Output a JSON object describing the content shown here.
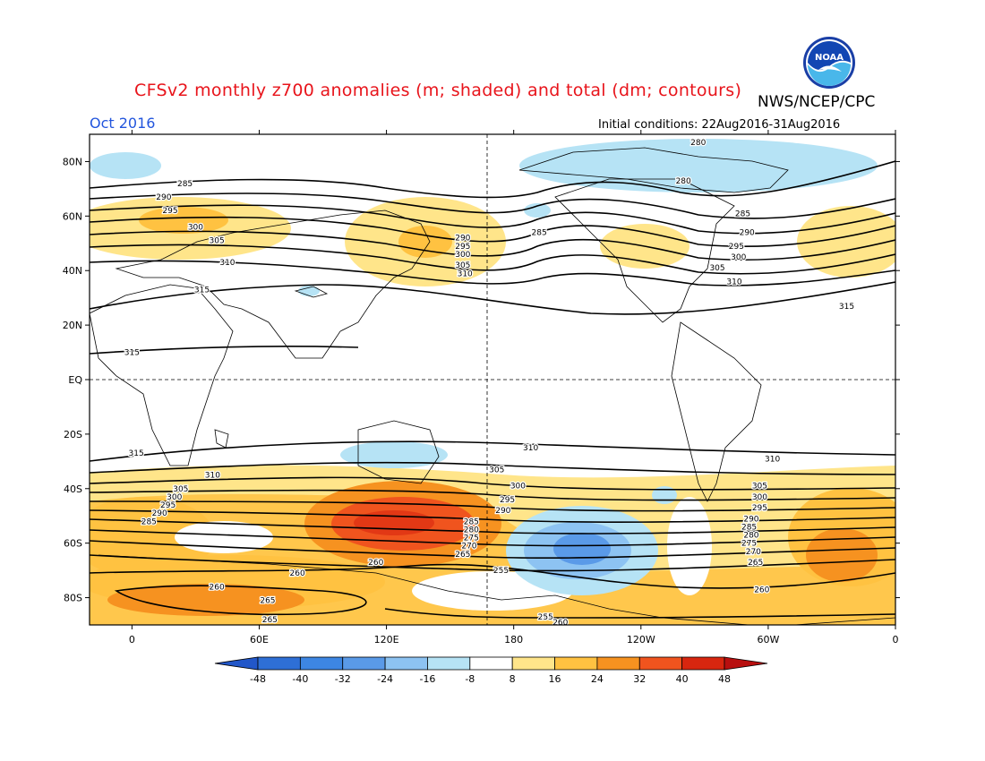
{
  "header": {
    "title": "CFSv2 monthly z700 anomalies (m; shaded) and total (dm; contours)",
    "title_color": "#e8141b",
    "agency": "NWS/NCEP/CPC",
    "month": "Oct 2016",
    "month_color": "#2255dd",
    "initial_conditions": "Initial conditions: 22Aug2016-31Aug2016",
    "logo_text": "NOAA",
    "logo_icon": "noaa-logo"
  },
  "map": {
    "projection": "cylindrical-equidistant",
    "lon_range": [
      -20,
      360
    ],
    "lat_range": [
      -90,
      90
    ],
    "lat_labels": [
      {
        "lat": 80,
        "text": "80N"
      },
      {
        "lat": 60,
        "text": "60N"
      },
      {
        "lat": 40,
        "text": "40N"
      },
      {
        "lat": 20,
        "text": "20N"
      },
      {
        "lat": 0,
        "text": "EQ"
      },
      {
        "lat": -20,
        "text": "20S"
      },
      {
        "lat": -40,
        "text": "40S"
      },
      {
        "lat": -60,
        "text": "60S"
      },
      {
        "lat": -80,
        "text": "80S"
      }
    ],
    "lon_labels": [
      {
        "lon": 0,
        "text": "0"
      },
      {
        "lon": 60,
        "text": "60E"
      },
      {
        "lon": 120,
        "text": "120E"
      },
      {
        "lon": 180,
        "text": "180"
      },
      {
        "lon": 240,
        "text": "120W"
      },
      {
        "lon": 300,
        "text": "60W"
      },
      {
        "lon": 360,
        "text": "0"
      }
    ],
    "reference_lines": {
      "equator": true,
      "dateline": true
    }
  },
  "colorbar": {
    "ticks": [
      "-48",
      "-40",
      "-32",
      "-24",
      "-16",
      "-8",
      "8",
      "16",
      "24",
      "32",
      "40",
      "48"
    ],
    "colors": [
      "#2e6fd6",
      "#3d86e3",
      "#5a9ae8",
      "#8dc3f2",
      "#b6e3f5",
      "#ffffff",
      "#ffe58a",
      "#ffc241",
      "#f69220",
      "#f0541e",
      "#d8260f"
    ],
    "below_color": "#2257c9",
    "above_color": "#b80f0f"
  },
  "contour_labels": [
    {
      "text": "285",
      "lon": 25,
      "lat": 72
    },
    {
      "text": "290",
      "lon": 15,
      "lat": 67
    },
    {
      "text": "295",
      "lon": 18,
      "lat": 62
    },
    {
      "text": "300",
      "lon": 30,
      "lat": 56
    },
    {
      "text": "305",
      "lon": 40,
      "lat": 51
    },
    {
      "text": "310",
      "lon": 45,
      "lat": 43
    },
    {
      "text": "315",
      "lon": 33,
      "lat": 33
    },
    {
      "text": "315",
      "lon": 0,
      "lat": 10
    },
    {
      "text": "290",
      "lon": 156,
      "lat": 52
    },
    {
      "text": "295",
      "lon": 156,
      "lat": 49
    },
    {
      "text": "300",
      "lon": 156,
      "lat": 46
    },
    {
      "text": "305",
      "lon": 156,
      "lat": 42
    },
    {
      "text": "310",
      "lon": 157,
      "lat": 39
    },
    {
      "text": "285",
      "lon": 192,
      "lat": 54
    },
    {
      "text": "280",
      "lon": 260,
      "lat": 73
    },
    {
      "text": "285",
      "lon": 288,
      "lat": 61
    },
    {
      "text": "290",
      "lon": 290,
      "lat": 54
    },
    {
      "text": "295",
      "lon": 285,
      "lat": 49
    },
    {
      "text": "300",
      "lon": 286,
      "lat": 45
    },
    {
      "text": "305",
      "lon": 276,
      "lat": 41
    },
    {
      "text": "310",
      "lon": 284,
      "lat": 36
    },
    {
      "text": "315",
      "lon": 337,
      "lat": 27
    },
    {
      "text": "280",
      "lon": 267,
      "lat": 87
    },
    {
      "text": "310",
      "lon": 188,
      "lat": -25
    },
    {
      "text": "310",
      "lon": 302,
      "lat": -29
    },
    {
      "text": "305",
      "lon": 172,
      "lat": -33
    },
    {
      "text": "300",
      "lon": 182,
      "lat": -39
    },
    {
      "text": "295",
      "lon": 177,
      "lat": -44
    },
    {
      "text": "290",
      "lon": 175,
      "lat": -48
    },
    {
      "text": "285",
      "lon": 160,
      "lat": -52
    },
    {
      "text": "280",
      "lon": 160,
      "lat": -55
    },
    {
      "text": "275",
      "lon": 160,
      "lat": -58
    },
    {
      "text": "270",
      "lon": 159,
      "lat": -61
    },
    {
      "text": "265",
      "lon": 156,
      "lat": -64
    },
    {
      "text": "260",
      "lon": 115,
      "lat": -67
    },
    {
      "text": "260",
      "lon": 78,
      "lat": -71
    },
    {
      "text": "255",
      "lon": 174,
      "lat": -70
    },
    {
      "text": "260",
      "lon": 40,
      "lat": -76
    },
    {
      "text": "265",
      "lon": 64,
      "lat": -81
    },
    {
      "text": "265",
      "lon": 65,
      "lat": -88
    },
    {
      "text": "255",
      "lon": 195,
      "lat": -87
    },
    {
      "text": "260",
      "lon": 202,
      "lat": -89
    },
    {
      "text": "315",
      "lon": 2,
      "lat": -27
    },
    {
      "text": "310",
      "lon": 38,
      "lat": -35
    },
    {
      "text": "305",
      "lon": 23,
      "lat": -40
    },
    {
      "text": "300",
      "lon": 20,
      "lat": -43
    },
    {
      "text": "295",
      "lon": 17,
      "lat": -46
    },
    {
      "text": "290",
      "lon": 13,
      "lat": -49
    },
    {
      "text": "285",
      "lon": 8,
      "lat": -52
    },
    {
      "text": "305",
      "lon": 296,
      "lat": -39
    },
    {
      "text": "300",
      "lon": 296,
      "lat": -43
    },
    {
      "text": "295",
      "lon": 296,
      "lat": -47
    },
    {
      "text": "290",
      "lon": 292,
      "lat": -51
    },
    {
      "text": "285",
      "lon": 291,
      "lat": -54
    },
    {
      "text": "280",
      "lon": 292,
      "lat": -57
    },
    {
      "text": "275",
      "lon": 291,
      "lat": -60
    },
    {
      "text": "270",
      "lon": 293,
      "lat": -63
    },
    {
      "text": "265",
      "lon": 294,
      "lat": -67
    },
    {
      "text": "260",
      "lon": 297,
      "lat": -77
    }
  ]
}
